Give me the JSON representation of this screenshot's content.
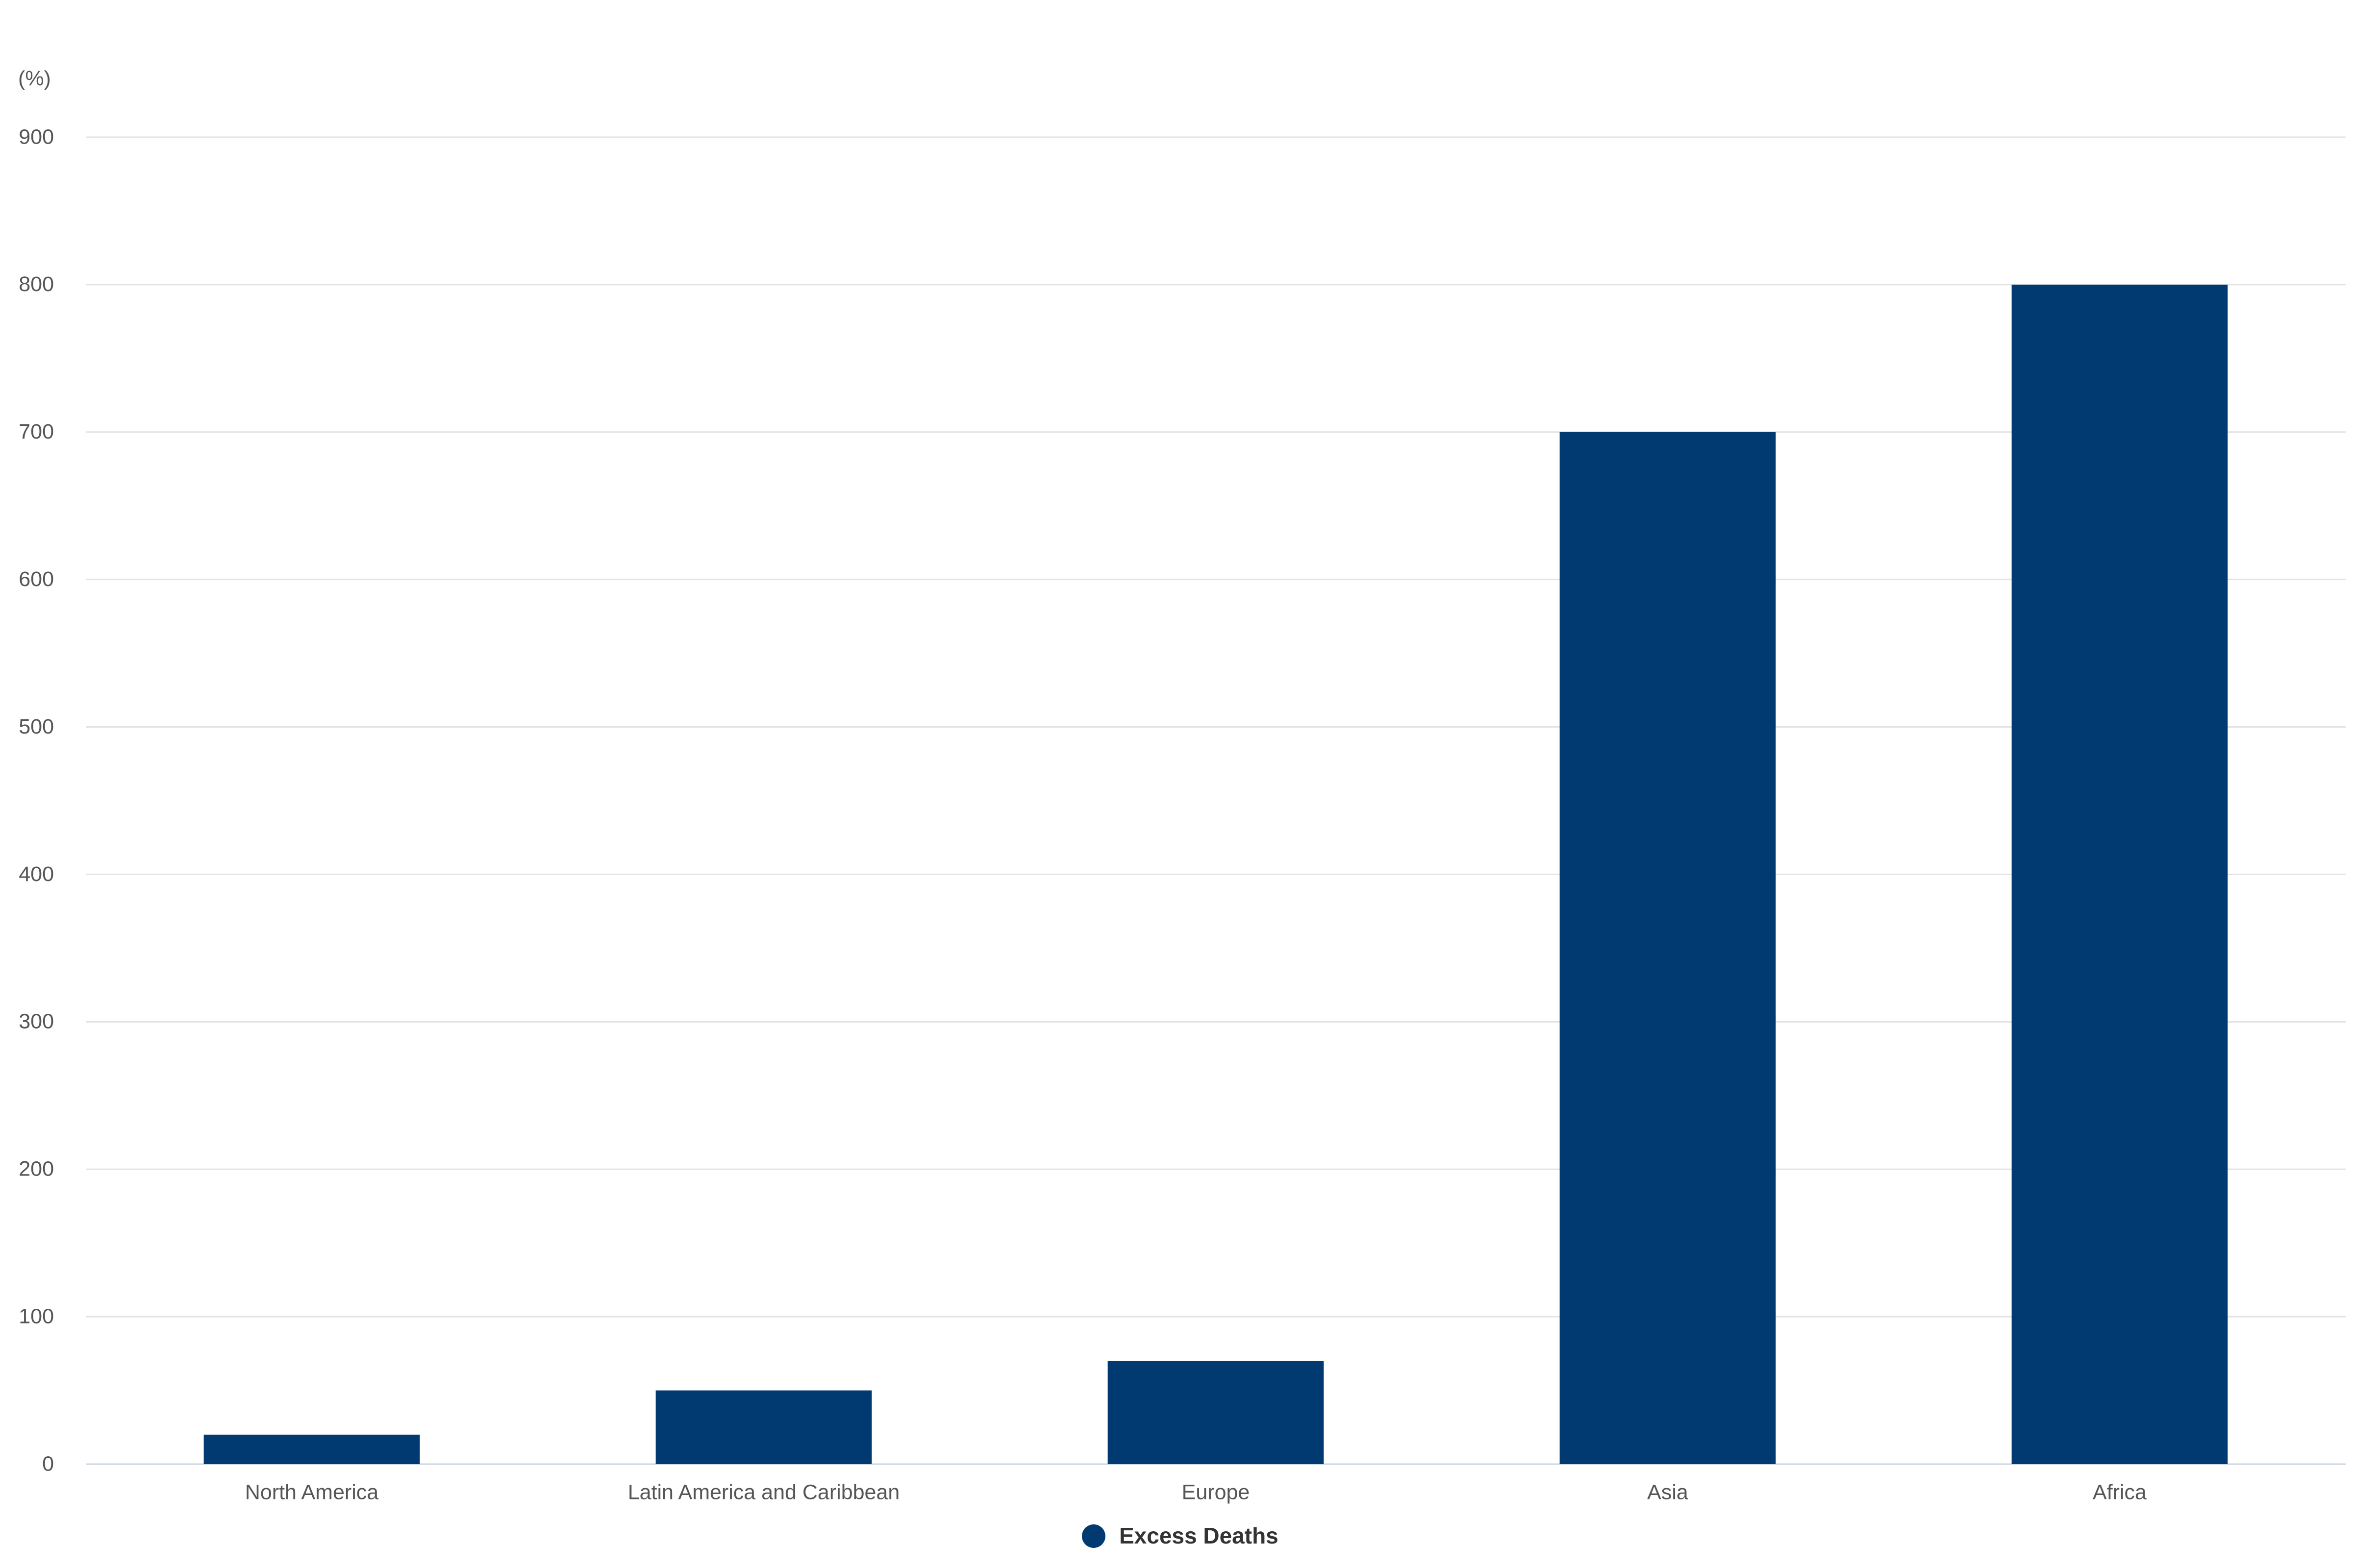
{
  "chart_data": {
    "type": "bar",
    "y_label": "(%)",
    "categories": [
      "North America",
      "Latin America and Caribbean",
      "Europe",
      "Asia",
      "Africa"
    ],
    "series": [
      {
        "name": "Excess Deaths",
        "color": "#003a70",
        "values": [
          20,
          50,
          70,
          700,
          800
        ]
      }
    ],
    "ylim": [
      0,
      900
    ],
    "yticks": [
      0,
      100,
      200,
      300,
      400,
      500,
      600,
      700,
      800,
      900
    ],
    "grid": true,
    "legend": "bottom"
  }
}
